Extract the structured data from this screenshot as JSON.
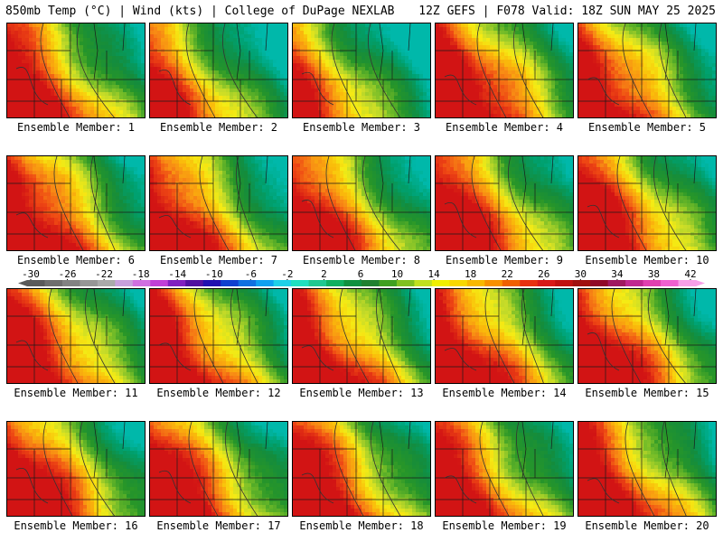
{
  "header": {
    "left": "850mb Temp (°C) | Wind (kts) | College of DuPage NEXLAB",
    "right": "12Z GEFS | F078 Valid: 18Z SUN MAY 25 2025"
  },
  "members": [
    {
      "label": "Ensemble Member: 1",
      "warm": 0.0
    },
    {
      "label": "Ensemble Member: 2",
      "warm": -0.15
    },
    {
      "label": "Ensemble Member: 3",
      "warm": -0.2
    },
    {
      "label": "Ensemble Member: 4",
      "warm": 0.1
    },
    {
      "label": "Ensemble Member: 5",
      "warm": 0.0
    },
    {
      "label": "Ensemble Member: 6",
      "warm": 0.05
    },
    {
      "label": "Ensemble Member: 7",
      "warm": 0.0
    },
    {
      "label": "Ensemble Member: 8",
      "warm": 0.0
    },
    {
      "label": "Ensemble Member: 9",
      "warm": 0.05
    },
    {
      "label": "Ensemble Member: 10",
      "warm": 0.05
    },
    {
      "label": "Ensemble Member: 11",
      "warm": 0.05
    },
    {
      "label": "Ensemble Member: 12",
      "warm": 0.05
    },
    {
      "label": "Ensemble Member: 13",
      "warm": 0.05
    },
    {
      "label": "Ensemble Member: 14",
      "warm": 0.05
    },
    {
      "label": "Ensemble Member: 15",
      "warm": 0.05
    },
    {
      "label": "Ensemble Member: 16",
      "warm": 0.05
    },
    {
      "label": "Ensemble Member: 17",
      "warm": 0.05
    },
    {
      "label": "Ensemble Member: 18",
      "warm": 0.05
    },
    {
      "label": "Ensemble Member: 19",
      "warm": 0.0
    },
    {
      "label": "Ensemble Member: 20",
      "warm": 0.05
    }
  ],
  "colorbar": {
    "tick_labels": [
      "-30",
      "-26",
      "-22",
      "-18",
      "-14",
      "-10",
      "-6",
      "-2",
      "2",
      "6",
      "10",
      "14",
      "18",
      "22",
      "26",
      "30",
      "34",
      "38",
      "42"
    ],
    "colors": [
      "#5a5a5a",
      "#6e6e6e",
      "#828282",
      "#969696",
      "#aaaaaa",
      "#c8a0dc",
      "#d070e0",
      "#c040d8",
      "#8020c0",
      "#5010a0",
      "#2010b0",
      "#1040d0",
      "#1070e0",
      "#10a0f0",
      "#20d0e8",
      "#20e0c0",
      "#20c890",
      "#10b060",
      "#109040",
      "#208030",
      "#40a020",
      "#80c020",
      "#c0e020",
      "#f0f000",
      "#f8d800",
      "#f8b800",
      "#f89000",
      "#f06000",
      "#e83010",
      "#d81818",
      "#c01010",
      "#a01010",
      "#900828",
      "#a01860",
      "#c02890",
      "#e040b0",
      "#f060d0",
      "#f8a0e8"
    ]
  }
}
